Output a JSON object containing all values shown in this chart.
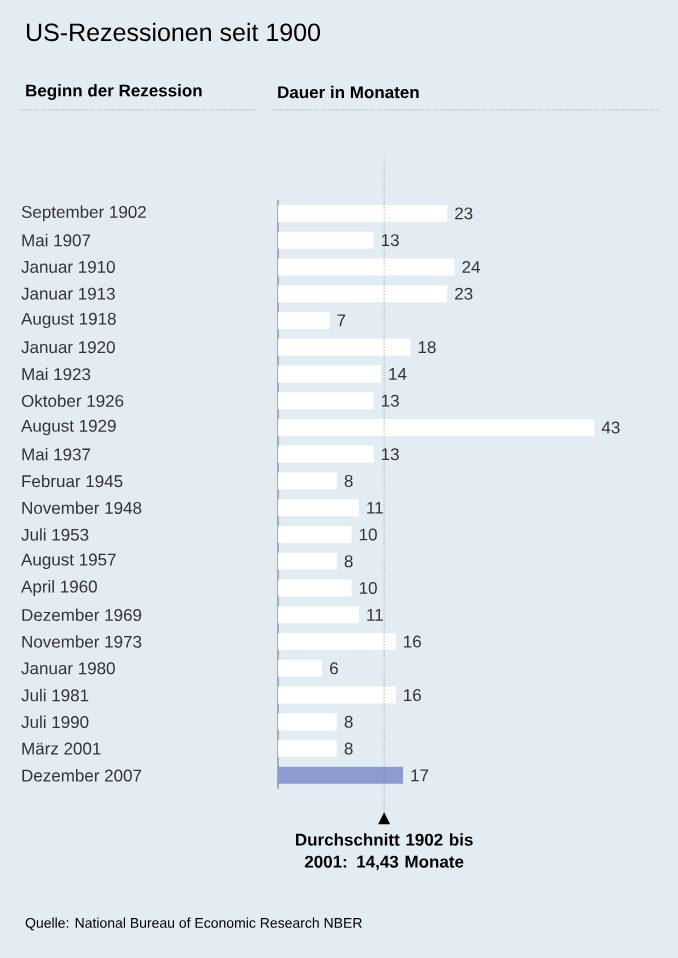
{
  "chart_data": {
    "type": "bar",
    "orientation": "horizontal",
    "title": "US-Rezessionen seit 1900",
    "categories": [
      "September 1902",
      "Mai 1907",
      "Januar 1910",
      "Januar 1913",
      "August 1918",
      "Januar 1920",
      "Mai 1923",
      "Oktober 1926",
      "August 1929",
      "Mai 1937",
      "Februar 1945",
      "November 1948",
      "Juli 1953",
      "August 1957",
      "April 1960",
      "Dezember 1969",
      "November 1973",
      "Januar 1980",
      "Juli 1981",
      "Juli 1990",
      "März 2001",
      "Dezember 2007"
    ],
    "values": [
      23,
      13,
      24,
      23,
      7,
      18,
      14,
      13,
      43,
      13,
      8,
      11,
      10,
      8,
      10,
      11,
      16,
      6,
      16,
      8,
      8,
      17
    ],
    "colors": [
      "#ffffff",
      "#ffffff",
      "#ffffff",
      "#ffffff",
      "#ffffff",
      "#ffffff",
      "#ffffff",
      "#ffffff",
      "#ffffff",
      "#ffffff",
      "#ffffff",
      "#ffffff",
      "#ffffff",
      "#ffffff",
      "#ffffff",
      "#ffffff",
      "#ffffff",
      "#ffffff",
      "#ffffff",
      "#ffffff",
      "#ffffff",
      "#8d9bd0"
    ],
    "data_labels": true,
    "ref_lines": [
      {
        "axis": "x",
        "value": 14.43,
        "label": "Durchschnitt 1902 bis 2001: 14,43 Monate",
        "line_style": "dotted"
      }
    ],
    "annotations": [
      "Beginn der Rezession",
      "Dauer in Monaten",
      "Quelle: National Bureau of Economic Research NBER"
    ]
  }
}
